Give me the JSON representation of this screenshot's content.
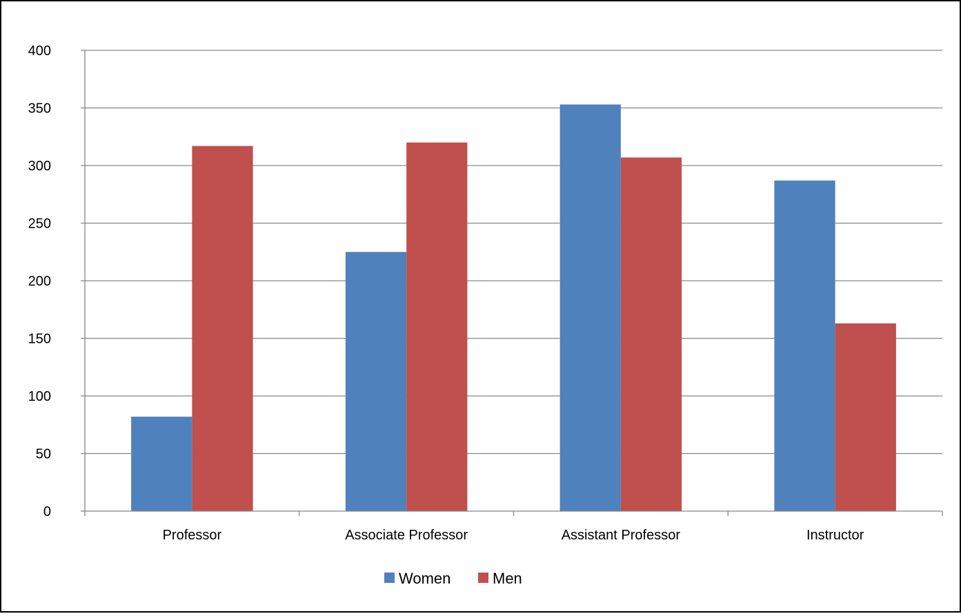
{
  "chart_data": {
    "type": "bar",
    "title": "",
    "xlabel": "",
    "ylabel": "",
    "categories": [
      "Professor",
      "Associate Professor",
      "Assistant Professor",
      "Instructor"
    ],
    "series": [
      {
        "name": "Women",
        "color": "#4F81BD",
        "values": [
          82,
          225,
          353,
          287
        ]
      },
      {
        "name": "Men",
        "color": "#C0504D",
        "values": [
          317,
          320,
          307,
          163
        ]
      }
    ],
    "ylim": [
      0,
      400
    ],
    "yticks": [
      "0",
      "50",
      "100",
      "150",
      "200",
      "250",
      "300",
      "350",
      "400"
    ],
    "grid": true,
    "legend_position": "bottom"
  }
}
